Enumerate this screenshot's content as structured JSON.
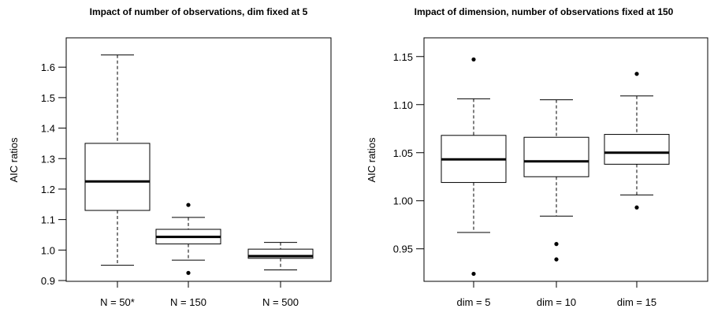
{
  "chart_data": [
    {
      "type": "box",
      "title": "Impact of number of observations, dim fixed at 5",
      "xlabel": "",
      "ylabel": "AIC ratios",
      "ylim": [
        0.9,
        1.66
      ],
      "yticks": [
        0.9,
        1.0,
        1.1,
        1.2,
        1.3,
        1.4,
        1.5,
        1.6
      ],
      "ytick_labels": [
        "0.9",
        "1.0",
        "1.1",
        "1.2",
        "1.3",
        "1.4",
        "1.5",
        "1.6"
      ],
      "categories": [
        "N = 50*",
        "N = 150",
        "N = 500"
      ],
      "boxes": [
        {
          "min": 0.95,
          "q1": 1.13,
          "median": 1.225,
          "q3": 1.35,
          "max": 1.64,
          "outliers": []
        },
        {
          "min": 0.967,
          "q1": 1.02,
          "median": 1.043,
          "q3": 1.068,
          "max": 1.107,
          "outliers": [
            1.148,
            0.925
          ]
        },
        {
          "min": 0.935,
          "q1": 0.973,
          "median": 0.98,
          "q3": 1.003,
          "max": 1.025,
          "outliers": []
        }
      ]
    },
    {
      "type": "box",
      "title": "Impact of dimension, number of observations fixed at 150",
      "xlabel": "",
      "ylabel": "AIC ratios",
      "ylim": [
        0.917,
        1.158
      ],
      "yticks": [
        0.95,
        1.0,
        1.05,
        1.1,
        1.15
      ],
      "ytick_labels": [
        "0.95",
        "1.00",
        "1.05",
        "1.10",
        "1.15"
      ],
      "categories": [
        "dim = 5",
        "dim = 10",
        "dim = 15"
      ],
      "boxes": [
        {
          "min": 0.967,
          "q1": 1.019,
          "median": 1.043,
          "q3": 1.068,
          "max": 1.106,
          "outliers": [
            1.147,
            0.924
          ]
        },
        {
          "min": 0.984,
          "q1": 1.025,
          "median": 1.041,
          "q3": 1.066,
          "max": 1.105,
          "outliers": [
            0.955,
            0.939
          ]
        },
        {
          "min": 1.006,
          "q1": 1.038,
          "median": 1.05,
          "q3": 1.069,
          "max": 1.109,
          "outliers": [
            1.132,
            0.993
          ]
        }
      ]
    }
  ]
}
